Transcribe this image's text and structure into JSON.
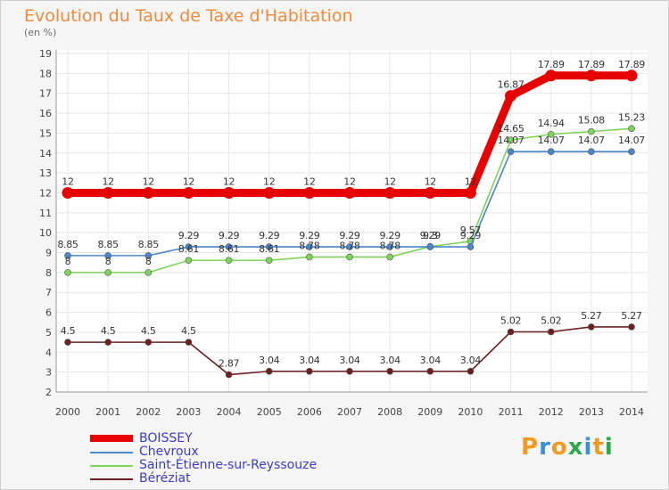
{
  "header": {
    "title": "Evolution du Taux de Taxe d'Habitation",
    "unit": "(en %)"
  },
  "chart_data": {
    "type": "line",
    "x": [
      "2000",
      "2001",
      "2002",
      "2003",
      "2004",
      "2005",
      "2006",
      "2007",
      "2008",
      "2009",
      "2010",
      "2011",
      "2012",
      "2013",
      "2014"
    ],
    "ylim": [
      2,
      19
    ],
    "yticks": [
      2,
      3,
      4,
      5,
      6,
      7,
      8,
      9,
      10,
      11,
      12,
      13,
      14,
      15,
      16,
      17,
      18,
      19
    ],
    "grid": true,
    "legend_position": "bottom-left",
    "series": [
      {
        "name": "BOISSEY",
        "color": "#e60000",
        "values": [
          12,
          12,
          12,
          12,
          12,
          12,
          12,
          12,
          12,
          12,
          12,
          16.87,
          17.89,
          17.89,
          17.89
        ],
        "labels": [
          "12",
          "12",
          "12",
          "12",
          "12",
          "12",
          "12",
          "12",
          "12",
          "12",
          "12",
          "16.87",
          "17.89",
          "17.89",
          "17.89"
        ]
      },
      {
        "name": "Chevroux",
        "color": "#4a86c8",
        "values": [
          8.85,
          8.85,
          8.85,
          9.29,
          9.29,
          9.29,
          9.29,
          9.29,
          9.29,
          9.29,
          9.29,
          14.07,
          14.07,
          14.07,
          14.07
        ],
        "labels": [
          "8.85",
          "8.85",
          "8.85",
          "9.29",
          "9.29",
          "9.29",
          "9.29",
          "9.29",
          "9.29",
          "9.29",
          "9.29",
          "14.07",
          "14.07",
          "14.07",
          "14.07"
        ]
      },
      {
        "name": "Saint-Étienne-sur-Reyssouze",
        "color": "#7ed35a",
        "values": [
          8,
          8,
          8,
          8.61,
          8.61,
          8.61,
          8.78,
          8.78,
          8.78,
          9.3,
          9.57,
          14.65,
          14.94,
          15.08,
          15.23
        ],
        "labels": [
          "8",
          "8",
          "8",
          "8.61",
          "8.61",
          "8.61",
          "8.78",
          "8.78",
          "8.78",
          "9.3",
          "9.57",
          "14.65",
          "14.94",
          "15.08",
          "15.23"
        ]
      },
      {
        "name": "Béréziat",
        "color": "#6b1f1f",
        "values": [
          4.5,
          4.5,
          4.5,
          4.5,
          2.87,
          3.04,
          3.04,
          3.04,
          3.04,
          3.04,
          3.04,
          5.02,
          5.02,
          5.27,
          5.27
        ],
        "labels": [
          "4.5",
          "4.5",
          "4.5",
          "4.5",
          "2.87",
          "3.04",
          "3.04",
          "3.04",
          "3.04",
          "3.04",
          "3.04",
          "5.02",
          "5.02",
          "5.27",
          "5.27"
        ]
      }
    ]
  },
  "legend": {
    "items": [
      {
        "label": "BOISSEY",
        "color": "#e60000"
      },
      {
        "label": "Chevroux",
        "color": "#4a86c8"
      },
      {
        "label": "Saint-Étienne-sur-Reyssouze",
        "color": "#7ed35a"
      },
      {
        "label": "Béréziat",
        "color": "#6b1f1f"
      }
    ]
  },
  "brand": {
    "text": "Proxiti",
    "colors": [
      "#f29a1f",
      "#3a8fd9",
      "#f29a1f",
      "#2aa84a",
      "#3a8fd9",
      "#f29a1f",
      "#2aa84a"
    ]
  }
}
